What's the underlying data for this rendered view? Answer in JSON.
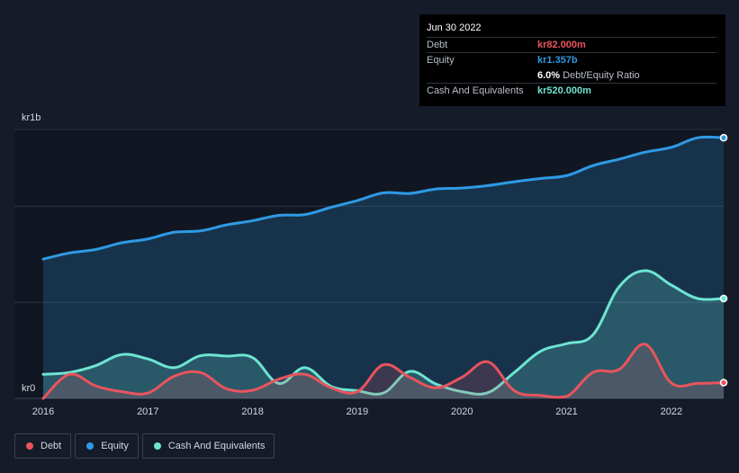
{
  "tooltip": {
    "date": "Jun 30 2022",
    "debt_label": "Debt",
    "debt_value": "kr82.000m",
    "equity_label": "Equity",
    "equity_value": "kr1.357b",
    "ratio_value": "6.0%",
    "ratio_label": "Debt/Equity Ratio",
    "cash_label": "Cash And Equivalents",
    "cash_value": "kr520.000m"
  },
  "legend": [
    {
      "label": "Debt",
      "color": "#e9545d"
    },
    {
      "label": "Equity",
      "color": "#2f9ae5"
    },
    {
      "label": "Cash And Equivalents",
      "color": "#6ee4d0"
    }
  ],
  "colors": {
    "debt": "#e9545d",
    "equity": "#2f9ae5",
    "cash": "#6ee4d0",
    "background": "#151b28",
    "plot_bg": "#111722",
    "grid": "#2c3240"
  },
  "chart_data": {
    "type": "area",
    "title": "",
    "xlabel": "",
    "ylabel": "",
    "y_unit_prefix": "kr",
    "ylim": [
      0,
      1400
    ],
    "y_tick_labels": [
      {
        "value": 1400,
        "label": "kr1b"
      },
      {
        "value": 0,
        "label": "kr0"
      }
    ],
    "y_gridlines": [
      0,
      500,
      1000,
      1400
    ],
    "xlim": [
      2016,
      2022.5
    ],
    "x_ticks": [
      2016,
      2017,
      2018,
      2019,
      2020,
      2021,
      2022
    ],
    "x_tick_labels": [
      "2016",
      "2017",
      "2018",
      "2019",
      "2020",
      "2021",
      "2022"
    ],
    "series": [
      {
        "name": "Equity",
        "key": "equity",
        "x": [
          2016,
          2016.25,
          2016.5,
          2016.75,
          2017,
          2017.25,
          2017.5,
          2017.75,
          2018,
          2018.25,
          2018.5,
          2018.75,
          2019,
          2019.25,
          2019.5,
          2019.75,
          2020,
          2020.25,
          2020.5,
          2020.75,
          2021,
          2021.25,
          2021.5,
          2021.75,
          2022,
          2022.25,
          2022.5
        ],
        "values": [
          725,
          757,
          775,
          810,
          830,
          865,
          872,
          903,
          925,
          953,
          957,
          995,
          1030,
          1070,
          1067,
          1090,
          1095,
          1108,
          1128,
          1145,
          1160,
          1212,
          1245,
          1282,
          1307,
          1357,
          1357
        ]
      },
      {
        "name": "Cash And Equivalents",
        "key": "cash",
        "x": [
          2016,
          2016.25,
          2016.5,
          2016.75,
          2017,
          2017.25,
          2017.5,
          2017.75,
          2018,
          2018.25,
          2018.5,
          2018.75,
          2019,
          2019.25,
          2019.5,
          2019.75,
          2020,
          2020.25,
          2020.5,
          2020.75,
          2021,
          2021.25,
          2021.5,
          2021.75,
          2022,
          2022.25,
          2022.5
        ],
        "values": [
          125,
          135,
          170,
          228,
          205,
          160,
          222,
          220,
          212,
          78,
          160,
          62,
          40,
          28,
          140,
          75,
          35,
          30,
          135,
          245,
          285,
          330,
          580,
          665,
          590,
          520,
          520
        ]
      },
      {
        "name": "Debt",
        "key": "debt",
        "x": [
          2016,
          2016.25,
          2016.5,
          2016.75,
          2017,
          2017.25,
          2017.5,
          2017.75,
          2018,
          2018.25,
          2018.5,
          2018.75,
          2019,
          2019.25,
          2019.5,
          2019.75,
          2020,
          2020.25,
          2020.5,
          2020.75,
          2021,
          2021.25,
          2021.5,
          2021.75,
          2022,
          2022.25,
          2022.5
        ],
        "values": [
          0,
          125,
          65,
          35,
          28,
          115,
          135,
          50,
          42,
          100,
          125,
          55,
          35,
          175,
          110,
          55,
          110,
          190,
          40,
          15,
          10,
          135,
          150,
          282,
          80,
          78,
          82
        ]
      }
    ]
  }
}
